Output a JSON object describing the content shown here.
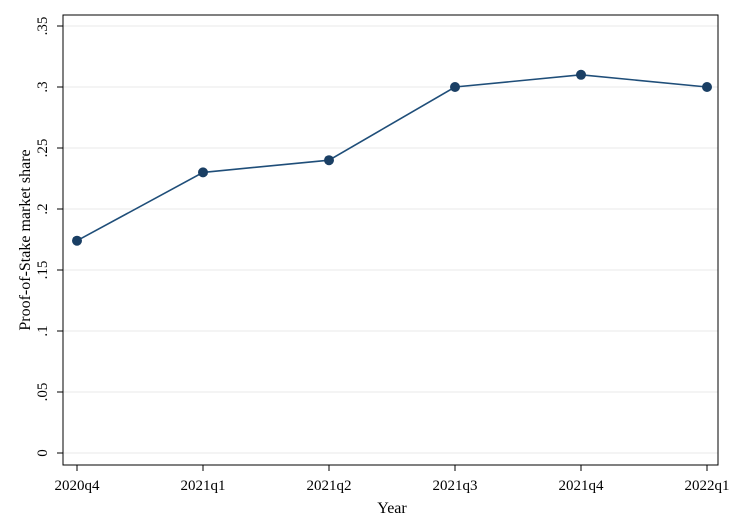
{
  "chart_data": {
    "type": "line",
    "title": "",
    "xlabel": "Year",
    "ylabel": "Proof-of-Stake market share",
    "categories": [
      "2020q4",
      "2021q1",
      "2021q2",
      "2021q3",
      "2021q4",
      "2022q1"
    ],
    "series": [
      {
        "values": [
          0.174,
          0.23,
          0.24,
          0.3,
          0.31,
          0.3
        ]
      }
    ],
    "ylim": [
      0,
      0.35
    ],
    "yticks": [
      0,
      0.05,
      0.1,
      0.15,
      0.2,
      0.25,
      0.3,
      0.35
    ],
    "ytick_labels": [
      "0",
      ".05",
      ".1",
      ".15",
      ".2",
      ".25",
      ".3",
      ".35"
    ],
    "grid": true,
    "legend": "none",
    "colors": {
      "line": "#1f4e79",
      "marker": "#1a3f64",
      "grid": "#eaeaea",
      "axis": "#000000"
    }
  }
}
